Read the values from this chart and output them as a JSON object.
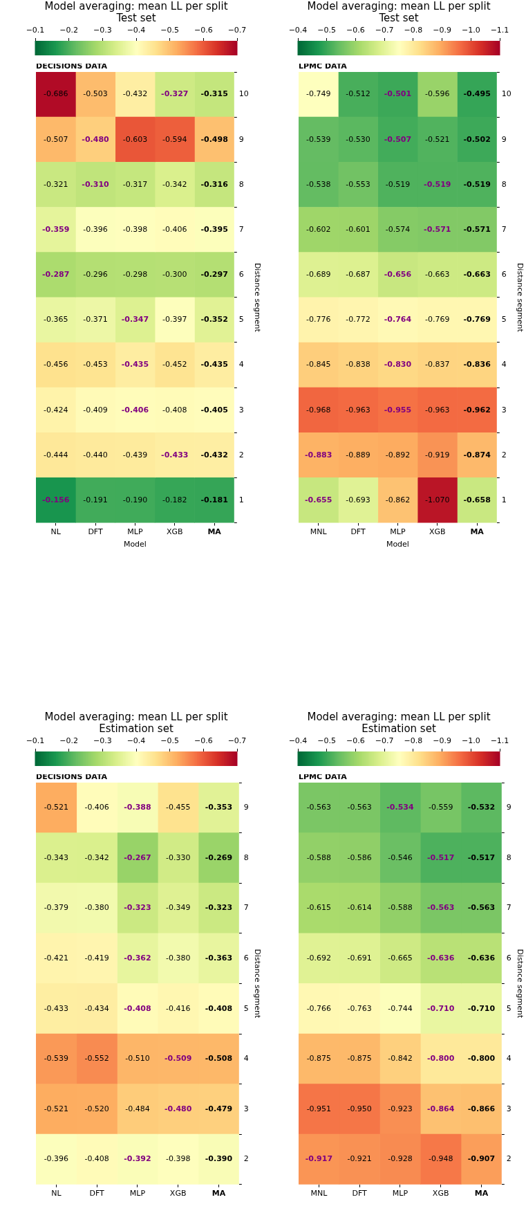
{
  "chart_data": [
    {
      "type": "heatmap",
      "title": "Model averaging: mean LL per split",
      "subtitle": "Test set",
      "annotations": [
        "DECISIONS DATA"
      ],
      "xlabel": "Model",
      "ylabel": "Distance segment",
      "categories": [
        "NL",
        "DFT",
        "MLP",
        "XGB",
        "MA"
      ],
      "y_categories": [
        "10",
        "9",
        "8",
        "7",
        "6",
        "5",
        "4",
        "3",
        "2",
        "1"
      ],
      "cells": [
        [
          -0.686,
          -0.503,
          -0.432,
          -0.327,
          -0.315
        ],
        [
          -0.507,
          -0.48,
          -0.603,
          -0.594,
          -0.498
        ],
        [
          -0.321,
          -0.31,
          -0.317,
          -0.342,
          -0.316
        ],
        [
          -0.359,
          -0.396,
          -0.398,
          -0.406,
          -0.395
        ],
        [
          -0.287,
          -0.296,
          -0.298,
          -0.3,
          -0.297
        ],
        [
          -0.365,
          -0.371,
          -0.347,
          -0.397,
          -0.352
        ],
        [
          -0.456,
          -0.453,
          -0.435,
          -0.452,
          -0.435
        ],
        [
          -0.424,
          -0.409,
          -0.406,
          -0.408,
          -0.405
        ],
        [
          -0.444,
          -0.44,
          -0.439,
          -0.433,
          -0.432
        ],
        [
          -0.156,
          -0.191,
          -0.19,
          -0.182,
          -0.181
        ]
      ],
      "cell_labels": [
        [
          "-0.686",
          "-0.503",
          "-0.432",
          "-0.327",
          "-0.315"
        ],
        [
          "-0.507",
          "-0.480",
          "-0.603",
          "-0.594",
          "-0.498"
        ],
        [
          "-0.321",
          "-0.310",
          "-0.317",
          "-0.342",
          "-0.316"
        ],
        [
          "-0.359",
          "-0.396",
          "-0.398",
          "-0.406",
          "-0.395"
        ],
        [
          "-0.287",
          "-0.296",
          "-0.298",
          "-0.300",
          "-0.297"
        ],
        [
          "-0.365",
          "-0.371",
          "-0.347",
          "-0.397",
          "-0.352"
        ],
        [
          "-0.456",
          "-0.453",
          "-0.435",
          "-0.452",
          "-0.435"
        ],
        [
          "-0.424",
          "-0.409",
          "-0.406",
          "-0.408",
          "-0.405"
        ],
        [
          "-0.444",
          "-0.440",
          "-0.439",
          "-0.433",
          "-0.432"
        ],
        [
          "-0.156",
          "-0.191",
          "-0.190",
          "-0.182",
          "-0.181"
        ]
      ],
      "clim": [
        -0.7,
        -0.1
      ],
      "cticks": [
        {
          "value": -0.7,
          "label": "−0.7"
        },
        {
          "value": -0.6,
          "label": "−0.6"
        },
        {
          "value": -0.5,
          "label": "−0.5"
        },
        {
          "value": -0.4,
          "label": "−0.4"
        },
        {
          "value": -0.3,
          "label": "−0.3"
        },
        {
          "value": -0.2,
          "label": "−0.2"
        },
        {
          "value": -0.1,
          "label": "−0.1"
        }
      ],
      "data_labels": true
    },
    {
      "type": "heatmap",
      "title": "Model averaging: mean LL per split",
      "subtitle": "Test set",
      "annotations": [
        "LPMC DATA"
      ],
      "xlabel": "Model",
      "ylabel": "Distance segment",
      "categories": [
        "MNL",
        "DFT",
        "MLP",
        "XGB",
        "MA"
      ],
      "y_categories": [
        "10",
        "9",
        "8",
        "7",
        "6",
        "5",
        "4",
        "3",
        "2",
        "1"
      ],
      "cells": [
        [
          -0.749,
          -0.512,
          -0.501,
          -0.596,
          -0.495
        ],
        [
          -0.539,
          -0.53,
          -0.507,
          -0.521,
          -0.502
        ],
        [
          -0.538,
          -0.553,
          -0.519,
          -0.519,
          -0.519
        ],
        [
          -0.602,
          -0.601,
          -0.574,
          -0.571,
          -0.571
        ],
        [
          -0.689,
          -0.687,
          -0.656,
          -0.663,
          -0.663
        ],
        [
          -0.776,
          -0.772,
          -0.764,
          -0.769,
          -0.769
        ],
        [
          -0.845,
          -0.838,
          -0.83,
          -0.837,
          -0.836
        ],
        [
          -0.968,
          -0.963,
          -0.955,
          -0.963,
          -0.962
        ],
        [
          -0.883,
          -0.889,
          -0.892,
          -0.919,
          -0.874
        ],
        [
          -0.655,
          -0.693,
          -0.862,
          -1.07,
          -0.658
        ]
      ],
      "cell_labels": [
        [
          "-0.749",
          "-0.512",
          "-0.501",
          "-0.596",
          "-0.495"
        ],
        [
          "-0.539",
          "-0.530",
          "-0.507",
          "-0.521",
          "-0.502"
        ],
        [
          "-0.538",
          "-0.553",
          "-0.519",
          "-0.519",
          "-0.519"
        ],
        [
          "-0.602",
          "-0.601",
          "-0.574",
          "-0.571",
          "-0.571"
        ],
        [
          "-0.689",
          "-0.687",
          "-0.656",
          "-0.663",
          "-0.663"
        ],
        [
          "-0.776",
          "-0.772",
          "-0.764",
          "-0.769",
          "-0.769"
        ],
        [
          "-0.845",
          "-0.838",
          "-0.830",
          "-0.837",
          "-0.836"
        ],
        [
          "-0.968",
          "-0.963",
          "-0.955",
          "-0.963",
          "-0.962"
        ],
        [
          "-0.883",
          "-0.889",
          "-0.892",
          "-0.919",
          "-0.874"
        ],
        [
          "-0.655",
          "-0.693",
          "-0.862",
          "-1.070",
          "-0.658"
        ]
      ],
      "clim": [
        -1.1,
        -0.4
      ],
      "cticks": [
        {
          "value": -1.1,
          "label": "−1.1"
        },
        {
          "value": -1.0,
          "label": "−1.0"
        },
        {
          "value": -0.9,
          "label": "−0.9"
        },
        {
          "value": -0.8,
          "label": "−0.8"
        },
        {
          "value": -0.7,
          "label": "−0.7"
        },
        {
          "value": -0.6,
          "label": "−0.6"
        },
        {
          "value": -0.5,
          "label": "−0.5"
        },
        {
          "value": -0.4,
          "label": "−0.4"
        }
      ],
      "data_labels": true
    },
    {
      "type": "heatmap",
      "title": "Model averaging: mean LL per split",
      "subtitle": "Estimation set",
      "annotations": [
        "DECISIONS DATA"
      ],
      "ylabel": "Distance segment",
      "categories": [
        "NL",
        "DFT",
        "MLP",
        "XGB",
        "MA"
      ],
      "y_categories": [
        "9",
        "8",
        "7",
        "6",
        "5",
        "4",
        "3",
        "2"
      ],
      "cells": [
        [
          -0.521,
          -0.406,
          -0.388,
          -0.455,
          -0.353
        ],
        [
          -0.343,
          -0.342,
          -0.267,
          -0.33,
          -0.269
        ],
        [
          -0.379,
          -0.38,
          -0.323,
          -0.349,
          -0.323
        ],
        [
          -0.421,
          -0.419,
          -0.362,
          -0.38,
          -0.363
        ],
        [
          -0.433,
          -0.434,
          -0.408,
          -0.416,
          -0.408
        ],
        [
          -0.539,
          -0.552,
          -0.51,
          -0.509,
          -0.508
        ],
        [
          -0.521,
          -0.52,
          -0.484,
          -0.48,
          -0.479
        ],
        [
          -0.396,
          -0.408,
          -0.392,
          -0.398,
          -0.39
        ]
      ],
      "cell_labels": [
        [
          "-0.521",
          "-0.406",
          "-0.388",
          "-0.455",
          "-0.353"
        ],
        [
          "-0.343",
          "-0.342",
          "-0.267",
          "-0.330",
          "-0.269"
        ],
        [
          "-0.379",
          "-0.380",
          "-0.323",
          "-0.349",
          "-0.323"
        ],
        [
          "-0.421",
          "-0.419",
          "-0.362",
          "-0.380",
          "-0.363"
        ],
        [
          "-0.433",
          "-0.434",
          "-0.408",
          "-0.416",
          "-0.408"
        ],
        [
          "-0.539",
          "-0.552",
          "-0.510",
          "-0.509",
          "-0.508"
        ],
        [
          "-0.521",
          "-0.520",
          "-0.484",
          "-0.480",
          "-0.479"
        ],
        [
          "-0.396",
          "-0.408",
          "-0.392",
          "-0.398",
          "-0.390"
        ]
      ],
      "clim": [
        -0.7,
        -0.1
      ],
      "cticks": [
        {
          "value": -0.7,
          "label": "−0.7"
        },
        {
          "value": -0.6,
          "label": "−0.6"
        },
        {
          "value": -0.5,
          "label": "−0.5"
        },
        {
          "value": -0.4,
          "label": "−0.4"
        },
        {
          "value": -0.3,
          "label": "−0.3"
        },
        {
          "value": -0.2,
          "label": "−0.2"
        },
        {
          "value": -0.1,
          "label": "−0.1"
        }
      ],
      "data_labels": true
    },
    {
      "type": "heatmap",
      "title": "Model averaging: mean LL per split",
      "subtitle": "Estimation set",
      "annotations": [
        "LPMC DATA"
      ],
      "ylabel": "Distance segment",
      "categories": [
        "MNL",
        "DFT",
        "MLP",
        "XGB",
        "MA"
      ],
      "y_categories": [
        "9",
        "8",
        "7",
        "6",
        "5",
        "4",
        "3",
        "2"
      ],
      "cells": [
        [
          -0.563,
          -0.563,
          -0.534,
          -0.559,
          -0.532
        ],
        [
          -0.588,
          -0.586,
          -0.546,
          -0.517,
          -0.517
        ],
        [
          -0.615,
          -0.614,
          -0.588,
          -0.563,
          -0.563
        ],
        [
          -0.692,
          -0.691,
          -0.665,
          -0.636,
          -0.636
        ],
        [
          -0.766,
          -0.763,
          -0.744,
          -0.71,
          -0.71
        ],
        [
          -0.875,
          -0.875,
          -0.842,
          -0.8,
          -0.8
        ],
        [
          -0.951,
          -0.95,
          -0.923,
          -0.864,
          -0.866
        ],
        [
          -0.917,
          -0.921,
          -0.928,
          -0.948,
          -0.907
        ]
      ],
      "cell_labels": [
        [
          "-0.563",
          "-0.563",
          "-0.534",
          "-0.559",
          "-0.532"
        ],
        [
          "-0.588",
          "-0.586",
          "-0.546",
          "-0.517",
          "-0.517"
        ],
        [
          "-0.615",
          "-0.614",
          "-0.588",
          "-0.563",
          "-0.563"
        ],
        [
          "-0.692",
          "-0.691",
          "-0.665",
          "-0.636",
          "-0.636"
        ],
        [
          "-0.766",
          "-0.763",
          "-0.744",
          "-0.710",
          "-0.710"
        ],
        [
          "-0.875",
          "-0.875",
          "-0.842",
          "-0.800",
          "-0.800"
        ],
        [
          "-0.951",
          "-0.950",
          "-0.923",
          "-0.864",
          "-0.866"
        ],
        [
          "-0.917",
          "-0.921",
          "-0.928",
          "-0.948",
          "-0.907"
        ]
      ],
      "clim": [
        -1.1,
        -0.4
      ],
      "cticks": [
        {
          "value": -1.1,
          "label": "−1.1"
        },
        {
          "value": -1.0,
          "label": "−1.0"
        },
        {
          "value": -0.9,
          "label": "−0.9"
        },
        {
          "value": -0.8,
          "label": "−0.8"
        },
        {
          "value": -0.7,
          "label": "−0.7"
        },
        {
          "value": -0.6,
          "label": "−0.6"
        },
        {
          "value": -0.5,
          "label": "−0.5"
        },
        {
          "value": -0.4,
          "label": "−0.4"
        }
      ],
      "data_labels": true
    }
  ]
}
